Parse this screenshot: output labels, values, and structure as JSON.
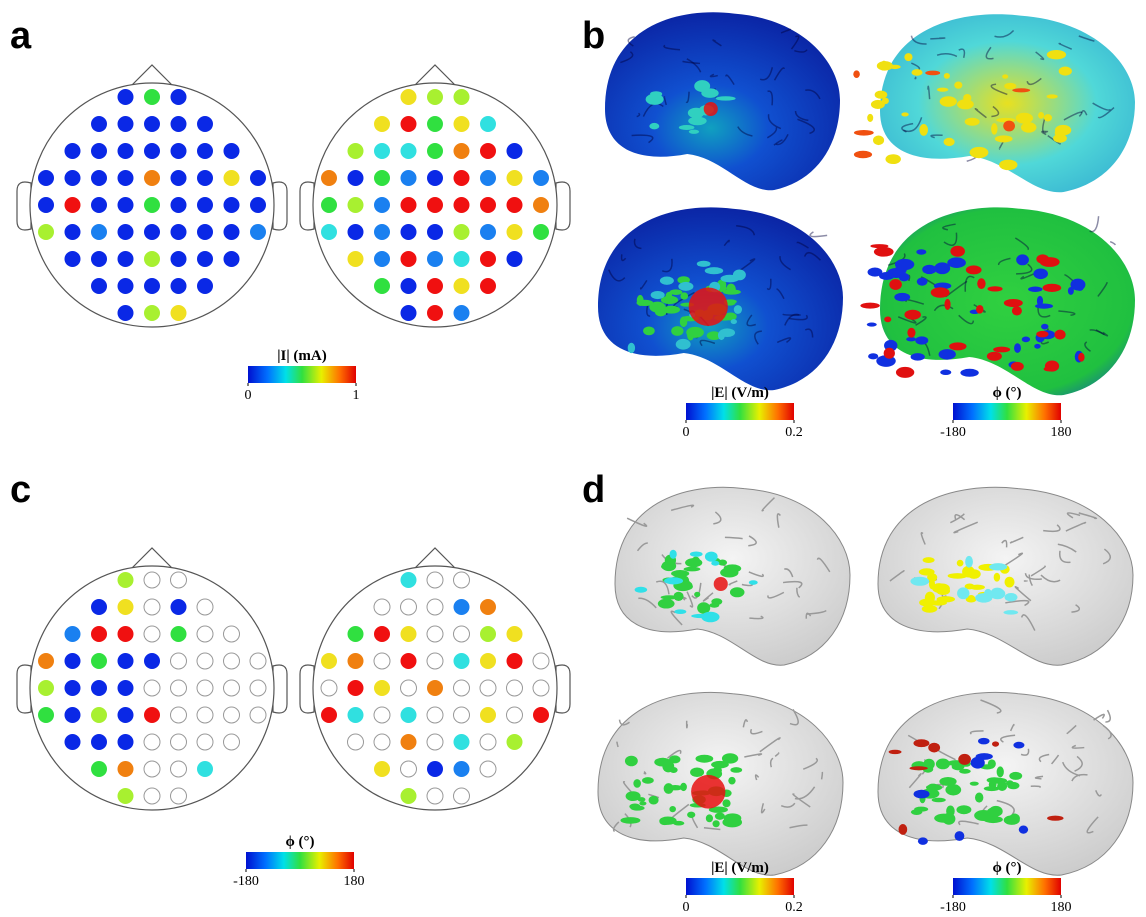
{
  "panel_labels": [
    "a",
    "b",
    "c",
    "d"
  ],
  "colorbars": [
    {
      "label": "|I| (mA)",
      "lim": [
        0,
        1
      ],
      "ticks": [
        0,
        1
      ]
    },
    {
      "label": "|E| (V/m)",
      "lim": [
        0,
        0.2
      ],
      "ticks": [
        0,
        0.2
      ]
    },
    {
      "label": "ϕ (°)",
      "lim": [
        -180,
        180
      ],
      "ticks": [
        -180,
        180
      ]
    },
    {
      "label": "ϕ (°)",
      "lim": [
        -180,
        180
      ],
      "ticks": [
        -180,
        180
      ]
    },
    {
      "label": "|E| (V/m)",
      "lim": [
        0,
        0.2
      ],
      "ticks": [
        0,
        0.2
      ]
    },
    {
      "label": "ϕ (°)",
      "lim": [
        -180,
        180
      ],
      "ticks": [
        -180,
        180
      ]
    }
  ]
}
